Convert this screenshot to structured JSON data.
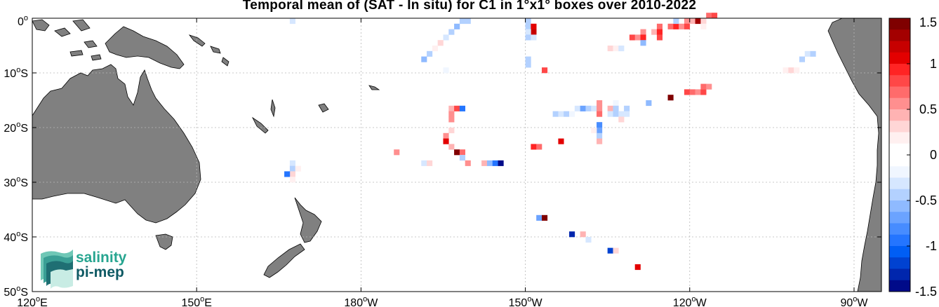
{
  "title": "Temporal mean of (SAT - In situ) for C1 in 1°x1° boxes over 2010-2022",
  "map": {
    "lon_range": [
      120,
      275
    ],
    "lat_range": [
      -50,
      0
    ],
    "x_ticks": [
      {
        "deg": "120",
        "sym": "o",
        "hem": "E"
      },
      {
        "deg": "150",
        "sym": "o",
        "hem": "E"
      },
      {
        "deg": "180",
        "sym": "o",
        "hem": "W"
      },
      {
        "deg": "150",
        "sym": "o",
        "hem": "W"
      },
      {
        "deg": "120",
        "sym": "o",
        "hem": "W"
      },
      {
        "deg": "90",
        "sym": "o",
        "hem": "W"
      }
    ],
    "y_ticks": [
      {
        "deg": "0",
        "sym": "o",
        "hem": ""
      },
      {
        "deg": "10",
        "sym": "o",
        "hem": "S"
      },
      {
        "deg": "20",
        "sym": "o",
        "hem": "S"
      },
      {
        "deg": "30",
        "sym": "o",
        "hem": "S"
      },
      {
        "deg": "40",
        "sym": "o",
        "hem": "S"
      },
      {
        "deg": "50",
        "sym": "o",
        "hem": "S"
      }
    ],
    "land_color": "#808080",
    "grid": true
  },
  "colorbar": {
    "range": [
      -1.5,
      1.5
    ],
    "levels": 24,
    "tick_labels": [
      "1.5",
      "1",
      "0.5",
      "0",
      "-0.5",
      "-1",
      "-1.5"
    ],
    "colors": [
      "#7f0000",
      "#a30000",
      "#c70000",
      "#e30000",
      "#ff2424",
      "#ff4747",
      "#ff6b6b",
      "#ff8f8f",
      "#ffb3b3",
      "#ffd6d6",
      "#fff0f0",
      "#ffffff",
      "#ffffff",
      "#f0f6ff",
      "#d6e7ff",
      "#b3d1ff",
      "#8fbaff",
      "#6ba3ff",
      "#478cff",
      "#2475ff",
      "#005ef5",
      "#0042d1",
      "#0026ad",
      "#000a89"
    ]
  },
  "logo": {
    "line1": "salinity",
    "line2": "pi-mep",
    "color_top": "#27a590",
    "color_bottom": "#0f5a64"
  },
  "chart_data": {
    "type": "heatmap",
    "title": "Temporal mean of (SAT - In situ) for C1 in 1°x1° boxes over 2010-2022",
    "value_range": [
      -1.5,
      1.5
    ],
    "boxes": [
      {
        "lon": 167.5,
        "lat": -0.5,
        "v": -0.3
      },
      {
        "lon": 198.5,
        "lat": -0.5,
        "v": -0.5
      },
      {
        "lon": 199.5,
        "lat": -0.5,
        "v": -0.4
      },
      {
        "lon": 197.5,
        "lat": -1.5,
        "v": -0.6
      },
      {
        "lon": 196.5,
        "lat": -2.5,
        "v": -0.4
      },
      {
        "lon": 195.5,
        "lat": -3.5,
        "v": -0.3
      },
      {
        "lon": 194.5,
        "lat": -4.5,
        "v": 0.3
      },
      {
        "lon": 193.5,
        "lat": -5.5,
        "v": 0.2
      },
      {
        "lon": 192.5,
        "lat": -6.5,
        "v": -0.5
      },
      {
        "lon": 191.5,
        "lat": -7.5,
        "v": -0.6
      },
      {
        "lon": 195.5,
        "lat": -9.5,
        "v": -0.2
      },
      {
        "lon": 210.5,
        "lat": -0.5,
        "v": -0.4
      },
      {
        "lon": 210.5,
        "lat": -1.5,
        "v": -0.5
      },
      {
        "lon": 211.5,
        "lat": -1.5,
        "v": 1.1
      },
      {
        "lon": 211.5,
        "lat": -2.5,
        "v": 1.2
      },
      {
        "lon": 210.5,
        "lat": -2.5,
        "v": -0.3
      },
      {
        "lon": 210.5,
        "lat": -3.5,
        "v": -0.4
      },
      {
        "lon": 211.5,
        "lat": -3.5,
        "v": -0.3
      },
      {
        "lon": 210.5,
        "lat": -7.5,
        "v": -0.5
      },
      {
        "lon": 210.5,
        "lat": -8.5,
        "v": -0.4
      },
      {
        "lon": 213.5,
        "lat": -9.5,
        "v": 0.8
      },
      {
        "lon": 225.5,
        "lat": -5.5,
        "v": 0.3
      },
      {
        "lon": 226.5,
        "lat": -5.5,
        "v": 0.2
      },
      {
        "lon": 227.5,
        "lat": -5.5,
        "v": -0.3
      },
      {
        "lon": 229.5,
        "lat": -3.5,
        "v": 0.8
      },
      {
        "lon": 230.5,
        "lat": -3.5,
        "v": 0.6
      },
      {
        "lon": 231.5,
        "lat": -2.5,
        "v": 0.5
      },
      {
        "lon": 231.5,
        "lat": -3.5,
        "v": 0.9
      },
      {
        "lon": 231.5,
        "lat": -4.5,
        "v": -0.6
      },
      {
        "lon": 233.5,
        "lat": -2.5,
        "v": 0.4
      },
      {
        "lon": 234.5,
        "lat": -1.5,
        "v": 0.7
      },
      {
        "lon": 234.5,
        "lat": -2.5,
        "v": 0.9
      },
      {
        "lon": 234.5,
        "lat": -3.5,
        "v": 0.8
      },
      {
        "lon": 236.5,
        "lat": -1.5,
        "v": 0.7
      },
      {
        "lon": 237.5,
        "lat": -1.5,
        "v": 0.9
      },
      {
        "lon": 237.5,
        "lat": -0.5,
        "v": -0.5
      },
      {
        "lon": 238.5,
        "lat": -1.5,
        "v": 0.6
      },
      {
        "lon": 239.5,
        "lat": -0.5,
        "v": 0.5
      },
      {
        "lon": 239.5,
        "lat": -1.5,
        "v": 0.8
      },
      {
        "lon": 240.5,
        "lat": -0.5,
        "v": 0.4
      },
      {
        "lon": 241.5,
        "lat": -0.5,
        "v": 1.3
      },
      {
        "lon": 242.5,
        "lat": -0.5,
        "v": 0.3
      },
      {
        "lon": 242.5,
        "lat": -1.5,
        "v": 0.2
      },
      {
        "lon": 243.5,
        "lat": 0.5,
        "v": 0.7
      },
      {
        "lon": 244.5,
        "lat": 0.5,
        "v": 0.8
      },
      {
        "lon": 261.5,
        "lat": -6.5,
        "v": -0.3
      },
      {
        "lon": 262.5,
        "lat": -6.5,
        "v": -0.4
      },
      {
        "lon": 260.5,
        "lat": -7.5,
        "v": -0.5
      },
      {
        "lon": 257.5,
        "lat": -9.5,
        "v": 0.2
      },
      {
        "lon": 258.5,
        "lat": -9.5,
        "v": 0.3
      },
      {
        "lon": 259.5,
        "lat": -9.5,
        "v": 0.2
      },
      {
        "lon": 239.5,
        "lat": -13.5,
        "v": 0.8
      },
      {
        "lon": 240.5,
        "lat": -13.5,
        "v": 0.7
      },
      {
        "lon": 241.5,
        "lat": -13.5,
        "v": 0.6
      },
      {
        "lon": 242.5,
        "lat": -13.5,
        "v": 0.8
      },
      {
        "lon": 242.5,
        "lat": -12.5,
        "v": 0.7
      },
      {
        "lon": 243.5,
        "lat": -12.5,
        "v": 0.5
      },
      {
        "lon": 236.5,
        "lat": -14.5,
        "v": 1.4
      },
      {
        "lon": 232.5,
        "lat": -15.5,
        "v": -0.6
      },
      {
        "lon": 215.5,
        "lat": -17.5,
        "v": -0.4
      },
      {
        "lon": 216.5,
        "lat": -17.5,
        "v": -0.3
      },
      {
        "lon": 217.5,
        "lat": -17.5,
        "v": -0.4
      },
      {
        "lon": 218.5,
        "lat": -17.5,
        "v": -0.2
      },
      {
        "lon": 219.5,
        "lat": -16.5,
        "v": -0.3
      },
      {
        "lon": 220.5,
        "lat": -16.5,
        "v": -0.7
      },
      {
        "lon": 221.5,
        "lat": -16.5,
        "v": -0.5
      },
      {
        "lon": 222.5,
        "lat": -16.5,
        "v": -0.3
      },
      {
        "lon": 223.5,
        "lat": -15.5,
        "v": 0.5
      },
      {
        "lon": 223.5,
        "lat": -16.5,
        "v": 0.6
      },
      {
        "lon": 223.5,
        "lat": -17.5,
        "v": 0.7
      },
      {
        "lon": 225.5,
        "lat": -16.5,
        "v": 0.4
      },
      {
        "lon": 225.5,
        "lat": -17.5,
        "v": -0.3
      },
      {
        "lon": 226.5,
        "lat": -15.5,
        "v": -0.2
      },
      {
        "lon": 226.5,
        "lat": -16.5,
        "v": -0.5
      },
      {
        "lon": 226.5,
        "lat": -17.5,
        "v": -0.4
      },
      {
        "lon": 227.5,
        "lat": -17.5,
        "v": -0.3
      },
      {
        "lon": 228.5,
        "lat": -16.5,
        "v": -0.5
      },
      {
        "lon": 228.5,
        "lat": -17.5,
        "v": -0.3
      },
      {
        "lon": 227.5,
        "lat": -18.5,
        "v": 0.3
      },
      {
        "lon": 223.5,
        "lat": -19.5,
        "v": -0.8
      },
      {
        "lon": 223.5,
        "lat": -20.5,
        "v": -0.7
      },
      {
        "lon": 222.5,
        "lat": -20.5,
        "v": 0.2
      },
      {
        "lon": 223.5,
        "lat": -21.5,
        "v": -0.4
      },
      {
        "lon": 223.5,
        "lat": -22.5,
        "v": 0.4
      },
      {
        "lon": 211.5,
        "lat": -23.5,
        "v": 0.9
      },
      {
        "lon": 212.5,
        "lat": -23.5,
        "v": 0.7
      },
      {
        "lon": 216.5,
        "lat": -22.5,
        "v": 1.0
      },
      {
        "lon": 196.5,
        "lat": -16.5,
        "v": 0.4
      },
      {
        "lon": 197.5,
        "lat": -16.5,
        "v": 0.8
      },
      {
        "lon": 198.5,
        "lat": -16.5,
        "v": -0.9
      },
      {
        "lon": 196.5,
        "lat": -17.5,
        "v": 0.6
      },
      {
        "lon": 196.5,
        "lat": -18.5,
        "v": 0.5
      },
      {
        "lon": 196.5,
        "lat": -20.5,
        "v": 0.3
      },
      {
        "lon": 195.5,
        "lat": -21.5,
        "v": 0.5
      },
      {
        "lon": 195.5,
        "lat": -22.5,
        "v": 1.0
      },
      {
        "lon": 196.5,
        "lat": -23.5,
        "v": 0.4
      },
      {
        "lon": 197.5,
        "lat": -24.5,
        "v": 1.4
      },
      {
        "lon": 198.5,
        "lat": -24.5,
        "v": 0.7
      },
      {
        "lon": 198.5,
        "lat": -25.5,
        "v": -0.4
      },
      {
        "lon": 199.5,
        "lat": -26.5,
        "v": 0.6
      },
      {
        "lon": 202.5,
        "lat": -26.5,
        "v": 0.4
      },
      {
        "lon": 203.5,
        "lat": -26.5,
        "v": -0.6
      },
      {
        "lon": 204.5,
        "lat": -26.5,
        "v": -0.9
      },
      {
        "lon": 205.5,
        "lat": -26.5,
        "v": -1.4
      },
      {
        "lon": 186.5,
        "lat": -24.5,
        "v": 0.6
      },
      {
        "lon": 191.5,
        "lat": -26.5,
        "v": -0.3
      },
      {
        "lon": 192.5,
        "lat": -26.5,
        "v": 0.3
      },
      {
        "lon": 167.5,
        "lat": -26.5,
        "v": -0.3
      },
      {
        "lon": 167.5,
        "lat": -27.5,
        "v": -0.4
      },
      {
        "lon": 168.5,
        "lat": -27.5,
        "v": 0.2
      },
      {
        "lon": 167.5,
        "lat": -28.5,
        "v": 0.3
      },
      {
        "lon": 166.5,
        "lat": -28.5,
        "v": -1.0
      },
      {
        "lon": 167.5,
        "lat": -29.5,
        "v": 0.2
      },
      {
        "lon": 212.5,
        "lat": -36.5,
        "v": -0.7
      },
      {
        "lon": 213.5,
        "lat": -36.5,
        "v": 1.4
      },
      {
        "lon": 218.5,
        "lat": -39.5,
        "v": -1.3
      },
      {
        "lon": 220.5,
        "lat": -39.5,
        "v": 0.4
      },
      {
        "lon": 221.5,
        "lat": -40.5,
        "v": -0.3
      },
      {
        "lon": 225.5,
        "lat": -42.5,
        "v": -1.2
      },
      {
        "lon": 226.5,
        "lat": -42.5,
        "v": 0.3
      },
      {
        "lon": 230.5,
        "lat": -45.5,
        "v": 1.0
      }
    ]
  }
}
